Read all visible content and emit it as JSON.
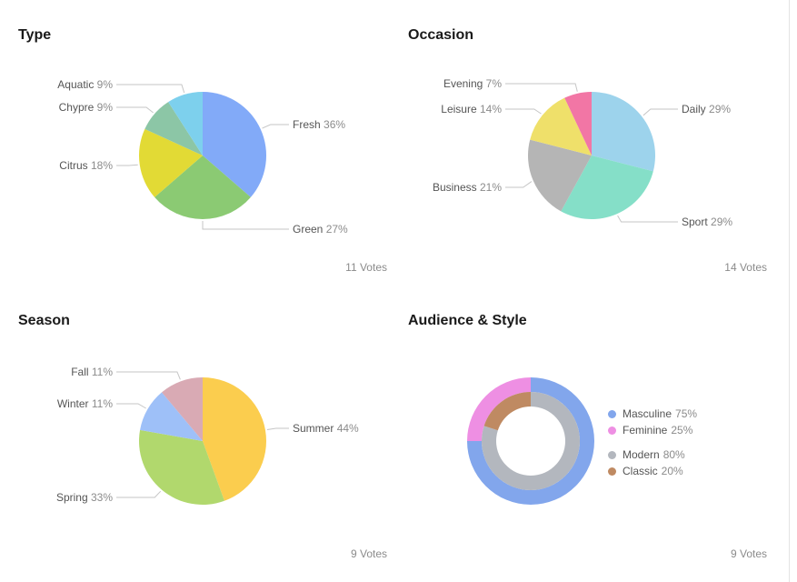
{
  "colors": {
    "title": "#1a1a1a",
    "label": "#555555",
    "value": "#8b8b8b",
    "leader": "#c6c6c6"
  },
  "chart_data": [
    {
      "type": "pie",
      "title": "Type",
      "votes": "11 Votes",
      "slices": [
        {
          "name": "Fresh",
          "label": "36%",
          "value": 36,
          "color": "#82aaf8"
        },
        {
          "name": "Green",
          "label": "27%",
          "value": 27,
          "color": "#8bca73"
        },
        {
          "name": "Citrus",
          "label": "18%",
          "value": 18,
          "color": "#e2da35"
        },
        {
          "name": "Chypre",
          "label": "9%",
          "value": 9,
          "color": "#8cc6a6"
        },
        {
          "name": "Aquatic",
          "label": "9%",
          "value": 9,
          "color": "#7dd0ed"
        }
      ]
    },
    {
      "type": "pie",
      "title": "Occasion",
      "votes": "14 Votes",
      "slices": [
        {
          "name": "Daily",
          "label": "29%",
          "value": 29,
          "color": "#9dd3ec"
        },
        {
          "name": "Sport",
          "label": "29%",
          "value": 29,
          "color": "#85dfc8"
        },
        {
          "name": "Business",
          "label": "21%",
          "value": 21,
          "color": "#b5b5b5"
        },
        {
          "name": "Leisure",
          "label": "14%",
          "value": 14,
          "color": "#efe06a"
        },
        {
          "name": "Evening",
          "label": "7%",
          "value": 7,
          "color": "#f276a5"
        }
      ]
    },
    {
      "type": "pie",
      "title": "Season",
      "votes": "9 Votes",
      "slices": [
        {
          "name": "Summer",
          "label": "44%",
          "value": 44,
          "color": "#fbcd4e"
        },
        {
          "name": "Spring",
          "label": "33%",
          "value": 33,
          "color": "#b1d86d"
        },
        {
          "name": "Winter",
          "label": "11%",
          "value": 11,
          "color": "#9ec0f8"
        },
        {
          "name": "Fall",
          "label": "11%",
          "value": 11,
          "color": "#d9aab4"
        }
      ]
    },
    {
      "type": "donut",
      "title": "Audience & Style",
      "votes": "9 Votes",
      "rings": [
        {
          "ring": "outer",
          "slices": [
            {
              "name": "Masculine",
              "label": "75%",
              "value": 75,
              "color": "#82a6ec"
            },
            {
              "name": "Feminine",
              "label": "25%",
              "value": 25,
              "color": "#ee8fe3"
            }
          ]
        },
        {
          "ring": "inner",
          "slices": [
            {
              "name": "Modern",
              "label": "80%",
              "value": 80,
              "color": "#b3b7be"
            },
            {
              "name": "Classic",
              "label": "20%",
              "value": 20,
              "color": "#bf8a62"
            }
          ]
        }
      ],
      "legend_position": "right"
    }
  ]
}
